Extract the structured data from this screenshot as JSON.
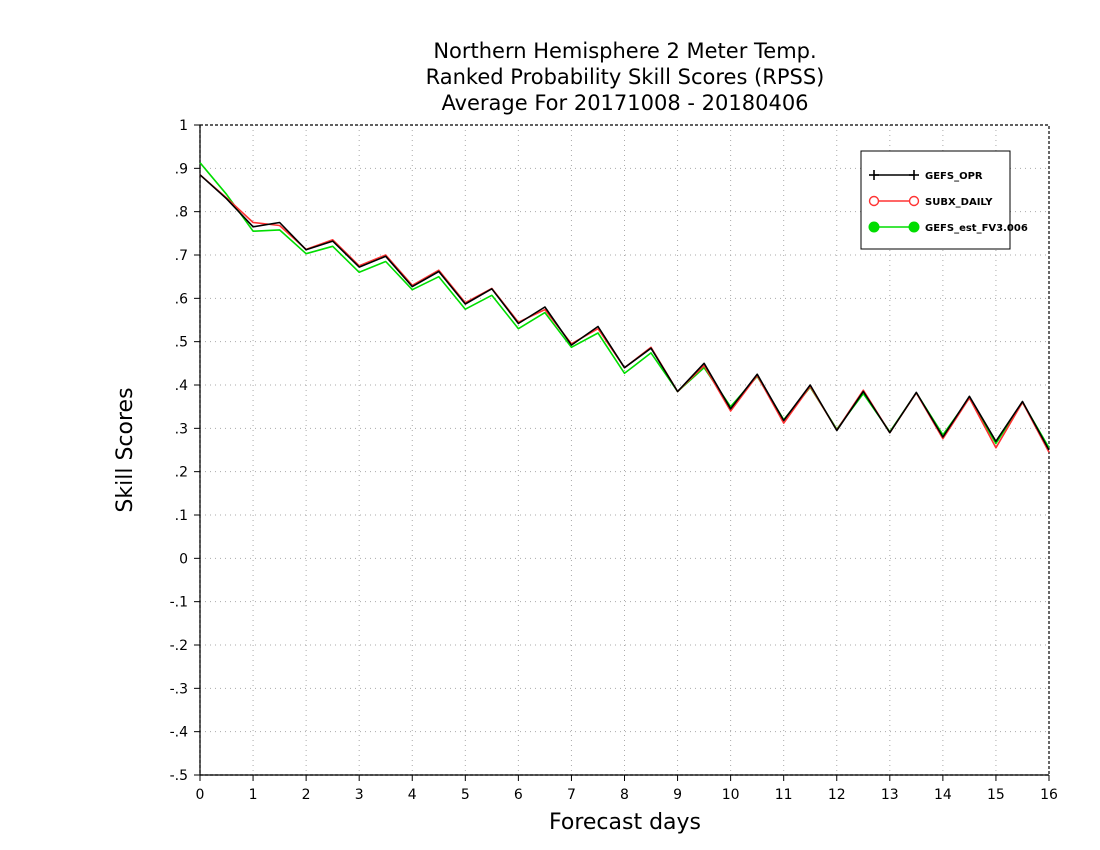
{
  "colors": {
    "series_0": "#000000",
    "series_1": "#ff3333",
    "series_2": "#00dd00",
    "grid": "#aaaaaa",
    "axis": "#000000"
  },
  "chart_data": {
    "type": "line",
    "title_lines": [
      "Northern Hemisphere 2 Meter Temp.",
      "Ranked Probability Skill Scores (RPSS)",
      "Average For 20171008 - 20180406"
    ],
    "xlabel": "Forecast days",
    "ylabel": "Skill Scores",
    "xlim": [
      0,
      16
    ],
    "ylim": [
      -0.5,
      1
    ],
    "x_ticks": [
      0,
      1,
      2,
      3,
      4,
      5,
      6,
      7,
      8,
      9,
      10,
      11,
      12,
      13,
      14,
      15,
      16
    ],
    "y_ticks": [
      -0.5,
      -0.4,
      -0.3,
      -0.2,
      -0.1,
      0,
      0.1,
      0.2,
      0.3,
      0.4,
      0.5,
      0.6,
      0.7,
      0.8,
      0.9,
      1
    ],
    "grid": true,
    "legend_position": "top-right",
    "x": [
      0,
      0.5,
      1,
      1.5,
      2,
      2.5,
      3,
      3.5,
      4,
      4.5,
      5,
      5.5,
      6,
      6.5,
      7,
      7.5,
      8,
      8.5,
      9,
      9.5,
      10,
      10.5,
      11,
      11.5,
      12,
      12.5,
      13,
      13.5,
      14,
      14.5,
      15,
      15.5,
      16
    ],
    "series": [
      {
        "name": "GEFS_OPR",
        "marker": "plus",
        "values": [
          0.885,
          0.83,
          0.765,
          0.775,
          0.712,
          0.732,
          0.672,
          0.697,
          0.627,
          0.662,
          0.587,
          0.622,
          0.542,
          0.58,
          0.492,
          0.535,
          0.44,
          0.485,
          0.385,
          0.45,
          0.345,
          0.425,
          0.318,
          0.4,
          0.295,
          0.385,
          0.29,
          0.383,
          0.28,
          0.374,
          0.27,
          0.362,
          0.25
        ]
      },
      {
        "name": "SUBX_DAILY",
        "marker": "open-circle",
        "values": [
          0.885,
          0.832,
          0.775,
          0.768,
          0.713,
          0.735,
          0.675,
          0.7,
          0.63,
          0.665,
          0.59,
          0.623,
          0.545,
          0.574,
          0.495,
          0.53,
          0.44,
          0.487,
          0.385,
          0.445,
          0.34,
          0.422,
          0.312,
          0.397,
          0.296,
          0.388,
          0.29,
          0.382,
          0.276,
          0.37,
          0.255,
          0.36,
          0.245
        ]
      },
      {
        "name": "GEFS_est_FV3.006",
        "marker": "filled-circle",
        "values": [
          0.913,
          0.84,
          0.755,
          0.758,
          0.703,
          0.72,
          0.66,
          0.685,
          0.62,
          0.65,
          0.575,
          0.607,
          0.53,
          0.567,
          0.487,
          0.52,
          0.427,
          0.474,
          0.385,
          0.44,
          0.35,
          0.42,
          0.32,
          0.395,
          0.298,
          0.38,
          0.292,
          0.382,
          0.285,
          0.37,
          0.265,
          0.36,
          0.255
        ]
      }
    ]
  }
}
